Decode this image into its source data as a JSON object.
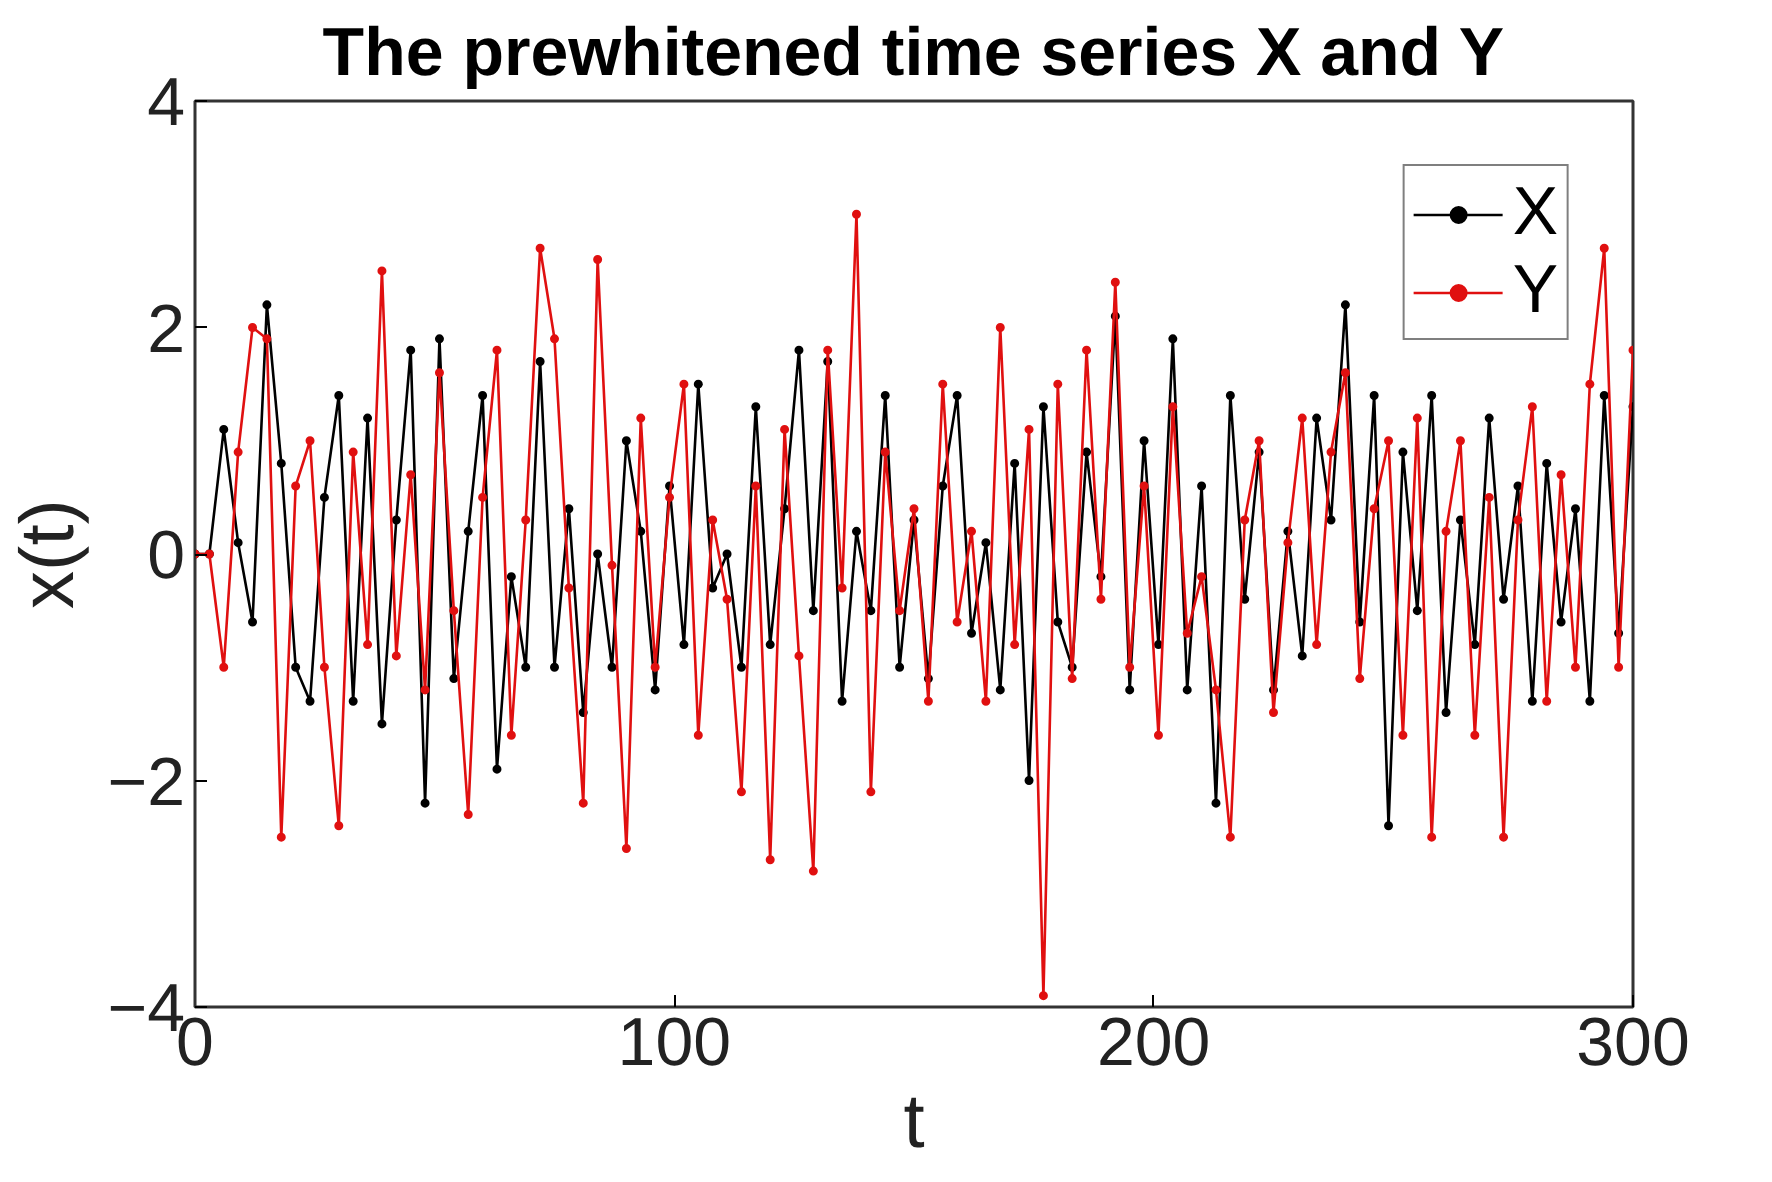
{
  "chart_data": {
    "type": "line",
    "title": "The prewhitened time series X and Y",
    "xlabel": "t",
    "ylabel": "x(t)",
    "xlim": [
      0,
      300
    ],
    "xticks": [
      0,
      100,
      200,
      300
    ],
    "ylim": [
      -4,
      4
    ],
    "yticks": [
      -4,
      -2,
      0,
      2,
      4
    ],
    "grid": false,
    "legend": "top right",
    "marker": "circle",
    "line_style": "solid",
    "series": [
      {
        "name": "X",
        "color": "#000000",
        "x": [
          0,
          3,
          6,
          9,
          12,
          15,
          18,
          21,
          24,
          27,
          30,
          33,
          36,
          39,
          42,
          45,
          48,
          51,
          54,
          57,
          60,
          63,
          66,
          69,
          72,
          75,
          78,
          81,
          84,
          87,
          90,
          93,
          96,
          99,
          102,
          105,
          108,
          111,
          114,
          117,
          120,
          123,
          126,
          129,
          132,
          135,
          138,
          141,
          144,
          147,
          150,
          153,
          156,
          159,
          162,
          165,
          168,
          171,
          174,
          177,
          180,
          183,
          186,
          189,
          192,
          195,
          198,
          201,
          204,
          207,
          210,
          213,
          216,
          219,
          222,
          225,
          228,
          231,
          234,
          237,
          240,
          243,
          246,
          249,
          252,
          255,
          258,
          261,
          264,
          267,
          270,
          273,
          276,
          279,
          282,
          285,
          288,
          291,
          294,
          297,
          300
        ],
        "values": [
          0,
          0,
          1.1,
          0.1,
          -0.6,
          2.2,
          0.8,
          -1.0,
          -1.3,
          0.5,
          1.4,
          -1.3,
          1.2,
          -1.5,
          0.3,
          1.8,
          -2.2,
          1.9,
          -1.1,
          0.2,
          1.4,
          -1.9,
          -0.2,
          -1.0,
          1.7,
          -1.0,
          0.4,
          -1.4,
          0.0,
          -1.0,
          1.0,
          0.2,
          -1.2,
          0.6,
          -0.8,
          1.5,
          -0.3,
          0.0,
          -1.0,
          1.3,
          -0.8,
          0.4,
          1.8,
          -0.5,
          1.7,
          -1.3,
          0.2,
          -0.5,
          1.4,
          -1.0,
          0.3,
          -1.1,
          0.6,
          1.4,
          -0.7,
          0.1,
          -1.2,
          0.8,
          -2.0,
          1.3,
          -0.6,
          -1.0,
          0.9,
          -0.2,
          2.1,
          -1.2,
          1.0,
          -0.8,
          1.9,
          -1.2,
          0.6,
          -2.2,
          1.4,
          -0.4,
          0.9,
          -1.2,
          0.2,
          -0.9,
          1.2,
          0.3,
          2.2,
          -0.6,
          1.4,
          -2.4,
          0.9,
          -0.5,
          1.4,
          -1.4,
          0.3,
          -0.8,
          1.2,
          -0.4,
          0.6,
          -1.3,
          0.8,
          -0.6,
          0.4,
          -1.3,
          1.4,
          -0.7,
          1.3
        ]
      },
      {
        "name": "Y",
        "color": "#e01010",
        "x": [
          0,
          3,
          6,
          9,
          12,
          15,
          18,
          21,
          24,
          27,
          30,
          33,
          36,
          39,
          42,
          45,
          48,
          51,
          54,
          57,
          60,
          63,
          66,
          69,
          72,
          75,
          78,
          81,
          84,
          87,
          90,
          93,
          96,
          99,
          102,
          105,
          108,
          111,
          114,
          117,
          120,
          123,
          126,
          129,
          132,
          135,
          138,
          141,
          144,
          147,
          150,
          153,
          156,
          159,
          162,
          165,
          168,
          171,
          174,
          177,
          180,
          183,
          186,
          189,
          192,
          195,
          198,
          201,
          204,
          207,
          210,
          213,
          216,
          219,
          222,
          225,
          228,
          231,
          234,
          237,
          240,
          243,
          246,
          249,
          252,
          255,
          258,
          261,
          264,
          267,
          270,
          273,
          276,
          279,
          282,
          285,
          288,
          291,
          294,
          297,
          300
        ],
        "values": [
          0,
          0,
          -1.0,
          0.9,
          2.0,
          1.9,
          -2.5,
          0.6,
          1.0,
          -1.0,
          -2.4,
          0.9,
          -0.8,
          2.5,
          -0.9,
          0.7,
          -1.2,
          1.6,
          -0.5,
          -2.3,
          0.5,
          1.8,
          -1.6,
          0.3,
          2.7,
          1.9,
          -0.3,
          -2.2,
          2.6,
          -0.1,
          -2.6,
          1.2,
          -1.0,
          0.5,
          1.5,
          -1.6,
          0.3,
          -0.4,
          -2.1,
          0.6,
          -2.7,
          1.1,
          -0.9,
          -2.8,
          1.8,
          -0.3,
          3.0,
          -2.1,
          0.9,
          -0.5,
          0.4,
          -1.3,
          1.5,
          -0.6,
          0.2,
          -1.3,
          2.0,
          -0.8,
          1.1,
          -3.9,
          1.5,
          -1.1,
          1.8,
          -0.4,
          2.4,
          -1.0,
          0.6,
          -1.6,
          1.3,
          -0.7,
          -0.2,
          -1.2,
          -2.5,
          0.3,
          1.0,
          -1.4,
          0.1,
          1.2,
          -0.8,
          0.9,
          1.6,
          -1.1,
          0.4,
          1.0,
          -1.6,
          1.2,
          -2.5,
          0.2,
          1.0,
          -1.6,
          0.5,
          -2.5,
          0.3,
          1.3,
          -1.3,
          0.7,
          -1.0,
          1.5,
          2.7,
          -1.0,
          1.8
        ]
      }
    ]
  }
}
